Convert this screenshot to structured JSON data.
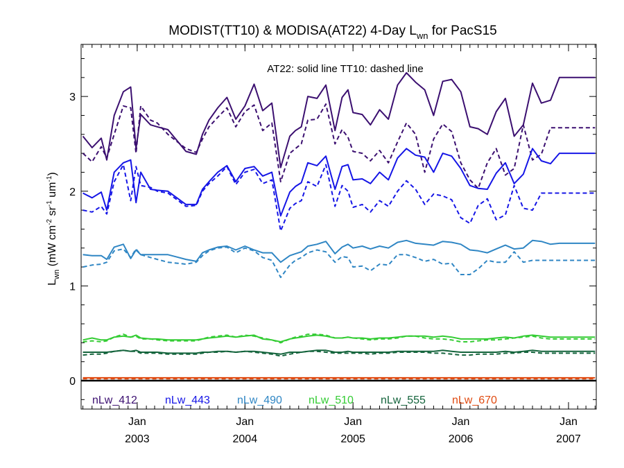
{
  "chart_data": {
    "type": "line",
    "title": "MODIST(TT10) & MODISA(AT22) 4-Day L",
    "title_sub": "wn",
    "title_suffix": " for PacS15",
    "annotation": "AT22: solid line   TT10: dashed line",
    "ylabel": {
      "prefix": "L",
      "sub": "wn",
      "a": " (mW cm",
      "exp1": "-2",
      "b": " sr",
      "exp2": "-1",
      "c": " um",
      "exp3": "-1",
      "d": ")"
    },
    "ylim": [
      -0.3,
      3.55
    ],
    "yticks": [
      {
        "v": 0,
        "label": "0"
      },
      {
        "v": 1,
        "label": "1"
      },
      {
        "v": 2,
        "label": "2"
      },
      {
        "v": 3,
        "label": "3"
      }
    ],
    "x_dates": [
      "2002-07-01",
      "2002-08-01",
      "2002-09-01",
      "2002-09-20",
      "2002-10-15",
      "2002-11-15",
      "2002-12-10",
      "2002-12-28",
      "2003-01-13",
      "2003-02-15",
      "2003-03-10",
      "2003-04-15",
      "2003-06-15",
      "2003-07-20",
      "2003-08-10",
      "2003-09-01",
      "2003-10-01",
      "2003-11-01",
      "2003-12-01",
      "2004-01-01",
      "2004-02-01",
      "2004-03-01",
      "2004-04-01",
      "2004-05-01",
      "2004-06-01",
      "2004-06-20",
      "2004-07-10",
      "2004-08-01",
      "2004-09-01",
      "2004-10-01",
      "2004-11-01",
      "2004-11-25",
      "2004-12-15",
      "2005-01-01",
      "2005-02-01",
      "2005-03-01",
      "2005-04-01",
      "2005-05-01",
      "2005-06-01",
      "2005-07-01",
      "2005-08-01",
      "2005-09-01",
      "2005-10-01",
      "2005-11-01",
      "2005-12-01",
      "2006-01-01",
      "2006-02-01",
      "2006-03-01",
      "2006-04-01",
      "2006-05-01",
      "2006-06-01",
      "2006-07-01",
      "2006-08-01",
      "2006-09-01",
      "2006-10-01",
      "2006-11-01",
      "2006-12-01",
      "2007-01-01",
      "2007-02-01",
      "2007-03-01",
      "2007-04-01"
    ],
    "xticks": [
      {
        "date": "2003-01-01",
        "label1": "Jan",
        "label2": "2003"
      },
      {
        "date": "2004-01-01",
        "label1": "Jan",
        "label2": "2004"
      },
      {
        "date": "2005-01-01",
        "label1": "Jan",
        "label2": "2005"
      },
      {
        "date": "2006-01-01",
        "label1": "Jan",
        "label2": "2006"
      },
      {
        "date": "2007-01-01",
        "label1": "Jan",
        "label2": "2007"
      }
    ],
    "xlim": [
      "2002-06-25",
      "2007-04-05"
    ],
    "series": [
      {
        "name": "nLw_412",
        "color": "#3b0f70",
        "solid": [
          2.58,
          2.46,
          2.56,
          2.33,
          2.8,
          3.05,
          3.1,
          2.45,
          2.81,
          2.7,
          2.68,
          2.65,
          2.42,
          2.39,
          2.6,
          2.75,
          2.88,
          2.99,
          2.76,
          2.9,
          3.13,
          2.85,
          2.93,
          2.25,
          2.58,
          2.64,
          2.68,
          3.0,
          2.98,
          3.12,
          2.64,
          2.99,
          3.07,
          2.83,
          2.81,
          2.7,
          2.86,
          2.76,
          3.12,
          3.25,
          3.15,
          3.07,
          2.8,
          3.16,
          3.18,
          3.05,
          2.68,
          2.66,
          2.6,
          2.84,
          2.98,
          2.58,
          2.7,
          3.14,
          2.93,
          2.96,
          3.2,
          3.2,
          3.2,
          3.2,
          3.2
        ],
        "dashed": [
          2.4,
          2.31,
          2.47,
          2.35,
          2.6,
          2.9,
          2.88,
          2.4,
          2.9,
          2.75,
          2.72,
          2.6,
          2.45,
          2.41,
          2.55,
          2.68,
          2.78,
          2.88,
          2.68,
          2.84,
          2.91,
          2.64,
          2.72,
          2.1,
          2.4,
          2.45,
          2.5,
          2.75,
          2.76,
          2.92,
          2.5,
          2.65,
          2.57,
          2.42,
          2.4,
          2.32,
          2.43,
          2.3,
          2.52,
          2.72,
          2.6,
          2.2,
          2.55,
          2.71,
          2.63,
          2.3,
          2.12,
          2.03,
          2.3,
          2.45,
          2.17,
          2.24,
          2.7,
          2.33,
          2.39,
          2.67,
          2.67,
          2.67,
          2.67,
          2.67,
          2.67
        ]
      },
      {
        "name": "nLw_443",
        "color": "#1515e6",
        "solid": [
          1.98,
          1.93,
          1.99,
          1.8,
          2.2,
          2.3,
          2.33,
          1.88,
          2.2,
          2.02,
          2.01,
          2.0,
          1.86,
          1.86,
          2.02,
          2.1,
          2.2,
          2.27,
          2.1,
          2.24,
          2.26,
          2.16,
          2.2,
          1.74,
          1.99,
          2.05,
          2.09,
          2.3,
          2.27,
          2.37,
          2.02,
          2.26,
          2.28,
          2.12,
          2.13,
          2.08,
          2.2,
          2.12,
          2.35,
          2.45,
          2.38,
          2.36,
          2.2,
          2.4,
          2.37,
          2.24,
          2.06,
          2.03,
          2.02,
          2.19,
          2.3,
          2.08,
          2.18,
          2.45,
          2.32,
          2.29,
          2.4,
          2.4,
          2.4,
          2.4,
          2.4
        ],
        "dashed": [
          1.8,
          1.78,
          1.84,
          1.76,
          2.1,
          2.28,
          1.9,
          2.26,
          2.06,
          2.04,
          2.0,
          1.98,
          1.84,
          1.85,
          2.0,
          2.08,
          2.16,
          2.26,
          2.07,
          2.2,
          2.23,
          2.08,
          2.12,
          1.58,
          1.82,
          1.87,
          1.9,
          2.1,
          2.05,
          2.28,
          1.84,
          2.06,
          2.0,
          1.83,
          1.86,
          1.78,
          1.9,
          1.84,
          2.0,
          2.11,
          2.02,
          1.86,
          1.97,
          1.95,
          1.91,
          1.72,
          1.66,
          1.85,
          1.92,
          1.7,
          1.75,
          2.06,
          1.82,
          1.8,
          1.98,
          1.98,
          1.98,
          1.98,
          1.98,
          1.98,
          1.98
        ]
      },
      {
        "name": "nLw_490",
        "color": "#2f86c4",
        "solid": [
          1.33,
          1.32,
          1.32,
          1.28,
          1.41,
          1.44,
          1.29,
          1.38,
          1.33,
          1.33,
          1.33,
          1.33,
          1.28,
          1.26,
          1.35,
          1.38,
          1.41,
          1.42,
          1.38,
          1.42,
          1.38,
          1.35,
          1.35,
          1.25,
          1.32,
          1.34,
          1.36,
          1.42,
          1.44,
          1.47,
          1.34,
          1.41,
          1.44,
          1.4,
          1.42,
          1.39,
          1.42,
          1.4,
          1.46,
          1.48,
          1.45,
          1.44,
          1.43,
          1.47,
          1.46,
          1.44,
          1.38,
          1.37,
          1.35,
          1.39,
          1.43,
          1.39,
          1.4,
          1.48,
          1.47,
          1.44,
          1.45,
          1.45,
          1.45,
          1.45,
          1.45
        ],
        "dashed": [
          1.2,
          1.22,
          1.23,
          1.25,
          1.37,
          1.39,
          1.3,
          1.39,
          1.33,
          1.3,
          1.28,
          1.25,
          1.23,
          1.25,
          1.32,
          1.37,
          1.4,
          1.41,
          1.35,
          1.4,
          1.37,
          1.3,
          1.27,
          1.09,
          1.22,
          1.27,
          1.3,
          1.35,
          1.38,
          1.36,
          1.25,
          1.31,
          1.3,
          1.2,
          1.21,
          1.16,
          1.23,
          1.22,
          1.33,
          1.33,
          1.3,
          1.26,
          1.28,
          1.23,
          1.24,
          1.12,
          1.12,
          1.18,
          1.27,
          1.25,
          1.25,
          1.36,
          1.25,
          1.27,
          1.27,
          1.27,
          1.27,
          1.27,
          1.27,
          1.27,
          1.27
        ]
      },
      {
        "name": "nLw_510",
        "color": "#33cc33",
        "solid": [
          0.43,
          0.45,
          0.43,
          0.43,
          0.46,
          0.47,
          0.46,
          0.48,
          0.45,
          0.44,
          0.44,
          0.43,
          0.43,
          0.43,
          0.44,
          0.45,
          0.46,
          0.47,
          0.46,
          0.47,
          0.48,
          0.44,
          0.43,
          0.41,
          0.44,
          0.45,
          0.46,
          0.47,
          0.48,
          0.47,
          0.45,
          0.45,
          0.46,
          0.45,
          0.45,
          0.44,
          0.45,
          0.45,
          0.46,
          0.47,
          0.47,
          0.47,
          0.46,
          0.47,
          0.46,
          0.44,
          0.44,
          0.44,
          0.44,
          0.45,
          0.46,
          0.45,
          0.47,
          0.48,
          0.47,
          0.46,
          0.46,
          0.46,
          0.46,
          0.46,
          0.46
        ],
        "dashed": [
          0.41,
          0.42,
          0.41,
          0.42,
          0.46,
          0.49,
          0.46,
          0.47,
          0.44,
          0.44,
          0.43,
          0.42,
          0.42,
          0.42,
          0.44,
          0.46,
          0.47,
          0.48,
          0.46,
          0.48,
          0.47,
          0.45,
          0.43,
          0.4,
          0.44,
          0.46,
          0.47,
          0.49,
          0.49,
          0.48,
          0.45,
          0.45,
          0.46,
          0.45,
          0.44,
          0.43,
          0.44,
          0.44,
          0.45,
          0.47,
          0.47,
          0.45,
          0.44,
          0.44,
          0.43,
          0.41,
          0.41,
          0.42,
          0.43,
          0.43,
          0.44,
          0.45,
          0.46,
          0.47,
          0.45,
          0.44,
          0.44,
          0.44,
          0.44,
          0.44,
          0.44
        ]
      },
      {
        "name": "nLw_555",
        "color": "#14643c",
        "solid": [
          0.3,
          0.3,
          0.3,
          0.3,
          0.31,
          0.32,
          0.31,
          0.32,
          0.3,
          0.3,
          0.3,
          0.29,
          0.29,
          0.29,
          0.3,
          0.3,
          0.31,
          0.31,
          0.3,
          0.31,
          0.31,
          0.3,
          0.29,
          0.28,
          0.3,
          0.3,
          0.3,
          0.31,
          0.32,
          0.32,
          0.3,
          0.3,
          0.31,
          0.3,
          0.3,
          0.3,
          0.3,
          0.3,
          0.31,
          0.31,
          0.31,
          0.31,
          0.31,
          0.32,
          0.31,
          0.3,
          0.3,
          0.3,
          0.3,
          0.3,
          0.31,
          0.3,
          0.31,
          0.32,
          0.31,
          0.31,
          0.31,
          0.31,
          0.31,
          0.31,
          0.31
        ],
        "dashed": [
          0.27,
          0.28,
          0.28,
          0.29,
          0.31,
          0.32,
          0.31,
          0.31,
          0.29,
          0.29,
          0.29,
          0.28,
          0.28,
          0.28,
          0.29,
          0.3,
          0.3,
          0.31,
          0.3,
          0.31,
          0.3,
          0.29,
          0.28,
          0.26,
          0.28,
          0.29,
          0.3,
          0.31,
          0.31,
          0.3,
          0.29,
          0.29,
          0.29,
          0.29,
          0.29,
          0.28,
          0.29,
          0.29,
          0.3,
          0.3,
          0.3,
          0.3,
          0.29,
          0.29,
          0.28,
          0.27,
          0.27,
          0.28,
          0.28,
          0.28,
          0.29,
          0.29,
          0.3,
          0.3,
          0.29,
          0.29,
          0.29,
          0.29,
          0.29,
          0.29,
          0.29
        ]
      },
      {
        "name": "nLw_670",
        "color": "#e04a10",
        "solid": [
          0.03,
          0.03,
          0.03,
          0.03,
          0.03,
          0.03,
          0.03,
          0.03,
          0.03,
          0.03,
          0.03,
          0.03,
          0.03,
          0.03,
          0.03,
          0.03,
          0.03,
          0.03,
          0.03,
          0.03,
          0.03,
          0.03,
          0.03,
          0.03,
          0.03,
          0.03,
          0.03,
          0.03,
          0.03,
          0.03,
          0.03,
          0.03,
          0.03,
          0.03,
          0.03,
          0.03,
          0.03,
          0.03,
          0.03,
          0.03,
          0.03,
          0.03,
          0.03,
          0.03,
          0.03,
          0.03,
          0.03,
          0.03,
          0.03,
          0.03,
          0.03,
          0.03,
          0.03,
          0.03,
          0.03,
          0.03,
          0.03,
          0.03,
          0.03,
          0.03,
          0.03
        ],
        "dashed": [
          0.02,
          0.02,
          0.02,
          0.02,
          0.02,
          0.02,
          0.02,
          0.02,
          0.02,
          0.02,
          0.02,
          0.02,
          0.02,
          0.02,
          0.02,
          0.02,
          0.02,
          0.02,
          0.02,
          0.02,
          0.02,
          0.02,
          0.02,
          0.02,
          0.02,
          0.02,
          0.02,
          0.02,
          0.02,
          0.02,
          0.02,
          0.02,
          0.02,
          0.02,
          0.02,
          0.02,
          0.02,
          0.02,
          0.02,
          0.02,
          0.02,
          0.02,
          0.02,
          0.02,
          0.02,
          0.02,
          0.02,
          0.02,
          0.02,
          0.02,
          0.02,
          0.02,
          0.02,
          0.02,
          0.02,
          0.02,
          0.02,
          0.02,
          0.02,
          0.02,
          0.02
        ]
      }
    ],
    "zero_line": true,
    "grid": false,
    "legend_position": "bottom"
  }
}
